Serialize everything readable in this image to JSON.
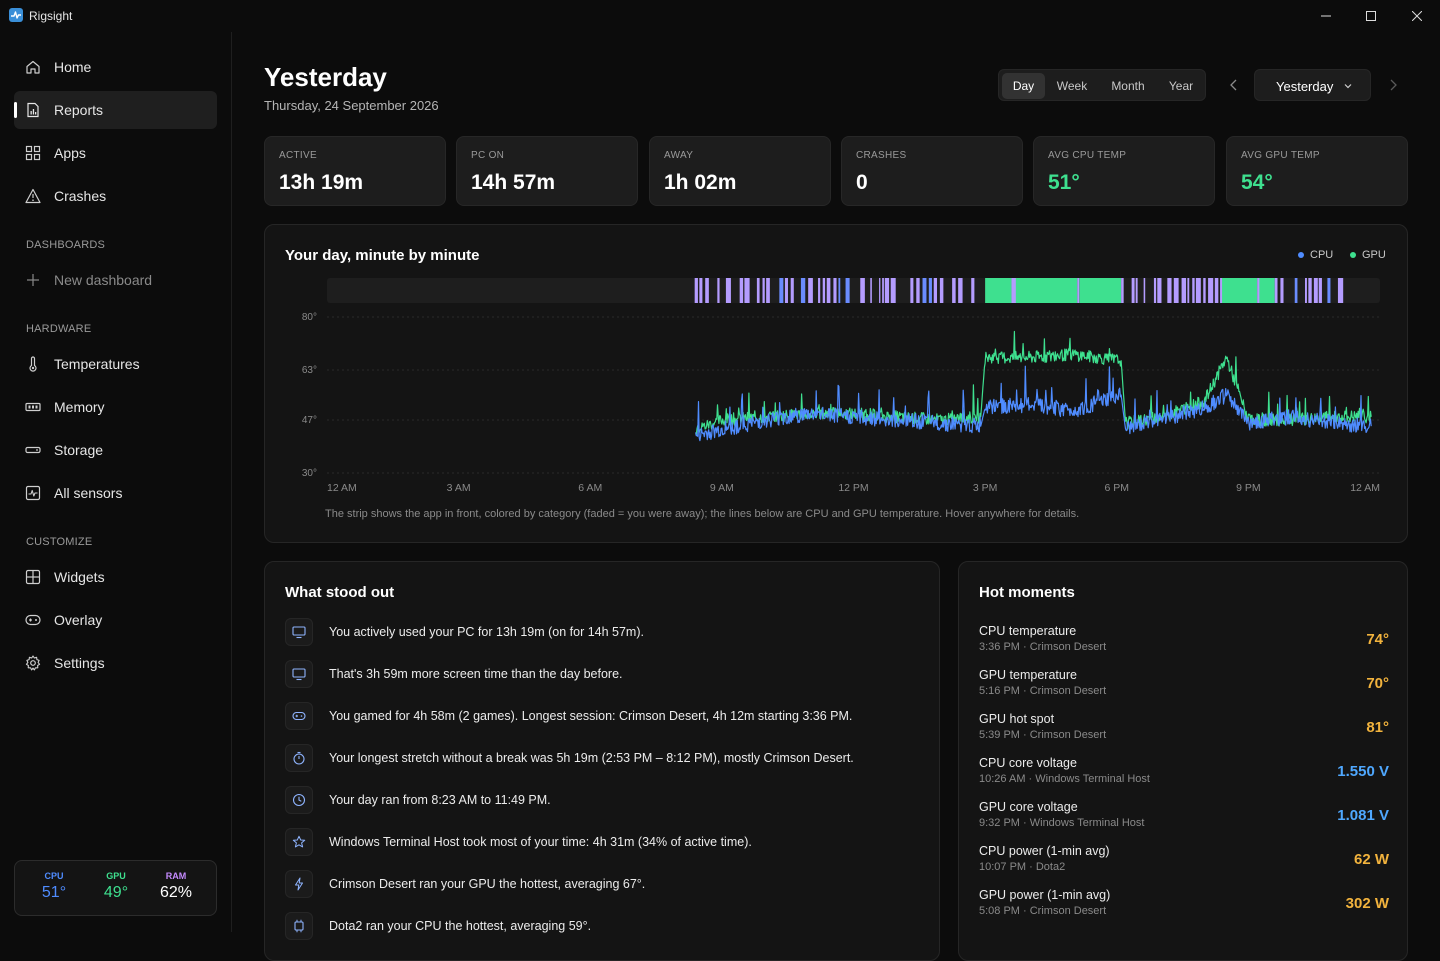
{
  "app": {
    "title": "Rigsight"
  },
  "sidebar": {
    "main": [
      {
        "label": "Home",
        "icon": "home-icon"
      },
      {
        "label": "Reports",
        "icon": "reports-icon",
        "active": true
      },
      {
        "label": "Apps",
        "icon": "apps-icon"
      },
      {
        "label": "Crashes",
        "icon": "warning-icon"
      }
    ],
    "dashboards_label": "DASHBOARDS",
    "new_dashboard": "New dashboard",
    "hardware_label": "HARDWARE",
    "hardware": [
      {
        "label": "Temperatures",
        "icon": "thermometer-icon"
      },
      {
        "label": "Memory",
        "icon": "memory-icon"
      },
      {
        "label": "Storage",
        "icon": "storage-icon"
      },
      {
        "label": "All sensors",
        "icon": "sensors-icon"
      }
    ],
    "customize_label": "CUSTOMIZE",
    "customize": [
      {
        "label": "Widgets",
        "icon": "widgets-icon"
      },
      {
        "label": "Overlay",
        "icon": "overlay-icon"
      },
      {
        "label": "Settings",
        "icon": "gear-icon"
      }
    ],
    "vitals": [
      {
        "label": "CPU",
        "value": "51°",
        "color": "#4f8cff"
      },
      {
        "label": "GPU",
        "value": "49°",
        "color": "#3ee08f"
      },
      {
        "label": "RAM",
        "value": "62%",
        "color": "#c58bff"
      }
    ]
  },
  "header": {
    "title": "Yesterday",
    "subtitle": "Thursday, 24 September 2026",
    "ranges": [
      "Day",
      "Week",
      "Month",
      "Year"
    ],
    "active_range": "Day",
    "date_select": "Yesterday"
  },
  "stats": [
    {
      "label": "ACTIVE",
      "value": "13h 19m",
      "color": "#ffffff"
    },
    {
      "label": "PC ON",
      "value": "14h 57m",
      "color": "#ffffff"
    },
    {
      "label": "AWAY",
      "value": "1h 02m",
      "color": "#ffffff"
    },
    {
      "label": "CRASHES",
      "value": "0",
      "color": "#ffffff"
    },
    {
      "label": "AVG CPU TEMP",
      "value": "51°",
      "color": "#3ee08f"
    },
    {
      "label": "AVG GPU TEMP",
      "value": "54°",
      "color": "#3ee08f"
    }
  ],
  "day_chart": {
    "title": "Your day, minute by minute",
    "note": "The strip shows the app in front, colored by category (faded = you were away); the lines below are CPU and GPU temperature. Hover anywhere for details.",
    "colors": {
      "cpu": "#4f8cff",
      "gpu": "#3ee08f",
      "app_gaming": "#3ee08f",
      "app_other": "#b49cff",
      "app_work": "#6a8cff"
    }
  },
  "chart_data": {
    "type": "line",
    "title": "Your day, minute by minute",
    "xlabel": "",
    "ylabel": "",
    "x_unit": "time of day",
    "x_ticks": [
      "12 AM",
      "3 AM",
      "6 AM",
      "9 AM",
      "12 PM",
      "3 PM",
      "6 PM",
      "9 PM",
      "12 AM"
    ],
    "y_ticks": [
      "80°",
      "63°",
      "47°",
      "30°"
    ],
    "ylim": [
      30,
      80
    ],
    "xlim_hours": [
      0,
      24
    ],
    "grid": true,
    "legend": "top-right",
    "series": [
      {
        "name": "CPU",
        "x_hours": [
          8.4,
          9,
          10,
          11,
          12,
          13,
          14,
          14.9,
          15,
          16,
          17,
          18.1,
          18.2,
          19,
          20,
          20.5,
          21,
          22,
          23,
          23.8
        ],
        "values": [
          42,
          44,
          47,
          49,
          48,
          47,
          46,
          45,
          51,
          52,
          50,
          55,
          44,
          47,
          51,
          55,
          46,
          48,
          46,
          45
        ]
      },
      {
        "name": "GPU",
        "x_hours": [
          8.4,
          9,
          10,
          11,
          12,
          13,
          14,
          14.9,
          15,
          16,
          17,
          18.1,
          18.2,
          19,
          20,
          20.5,
          21,
          22,
          23,
          23.8
        ],
        "values": [
          44,
          47,
          48,
          49,
          49,
          48,
          47,
          48,
          67,
          67,
          68,
          66,
          46,
          48,
          53,
          67,
          47,
          47,
          48,
          48
        ]
      }
    ]
  },
  "insights": {
    "title": "What stood out",
    "items": [
      {
        "icon": "monitor-icon",
        "text": "You actively used your PC for 13h 19m (on for 14h 57m)."
      },
      {
        "icon": "monitor-icon",
        "text": "That's 3h 59m more screen time than the day before."
      },
      {
        "icon": "gamepad-icon",
        "text": "You gamed for 4h 58m (2 games). Longest session: Crimson Desert, 4h 12m starting 3:36 PM."
      },
      {
        "icon": "stopwatch-icon",
        "text": "Your longest stretch without a break was 5h 19m (2:53 PM – 8:12 PM), mostly Crimson Desert."
      },
      {
        "icon": "clock-icon",
        "text": "Your day ran from 8:23 AM to 11:49 PM."
      },
      {
        "icon": "star-icon",
        "text": "Windows Terminal Host took most of your time: 4h 31m (34% of active time)."
      },
      {
        "icon": "bolt-icon",
        "text": "Crimson Desert ran your GPU the hottest, averaging 67°."
      },
      {
        "icon": "chip-icon",
        "text": "Dota2 ran your CPU the hottest, averaging 59°."
      }
    ]
  },
  "hot_moments": {
    "title": "Hot moments",
    "separator": "·",
    "items": [
      {
        "name": "CPU temperature",
        "time": "3:36 PM",
        "app": "Crimson Desert",
        "value": "74°",
        "color": "#f2b33d"
      },
      {
        "name": "GPU temperature",
        "time": "5:16 PM",
        "app": "Crimson Desert",
        "value": "70°",
        "color": "#f2b33d"
      },
      {
        "name": "GPU hot spot",
        "time": "5:39 PM",
        "app": "Crimson Desert",
        "value": "81°",
        "color": "#f2b33d"
      },
      {
        "name": "CPU core voltage",
        "time": "10:26 AM",
        "app": "Windows Terminal Host",
        "value": "1.550 V",
        "color": "#4fa8ff"
      },
      {
        "name": "GPU core voltage",
        "time": "9:32 PM",
        "app": "Windows Terminal Host",
        "value": "1.081 V",
        "color": "#4fa8ff"
      },
      {
        "name": "CPU power (1-min avg)",
        "time": "10:07 PM",
        "app": "Dota2",
        "value": "62 W",
        "color": "#f2b33d"
      },
      {
        "name": "GPU power (1-min avg)",
        "time": "5:08 PM",
        "app": "Crimson Desert",
        "value": "302 W",
        "color": "#f2b33d"
      }
    ]
  }
}
